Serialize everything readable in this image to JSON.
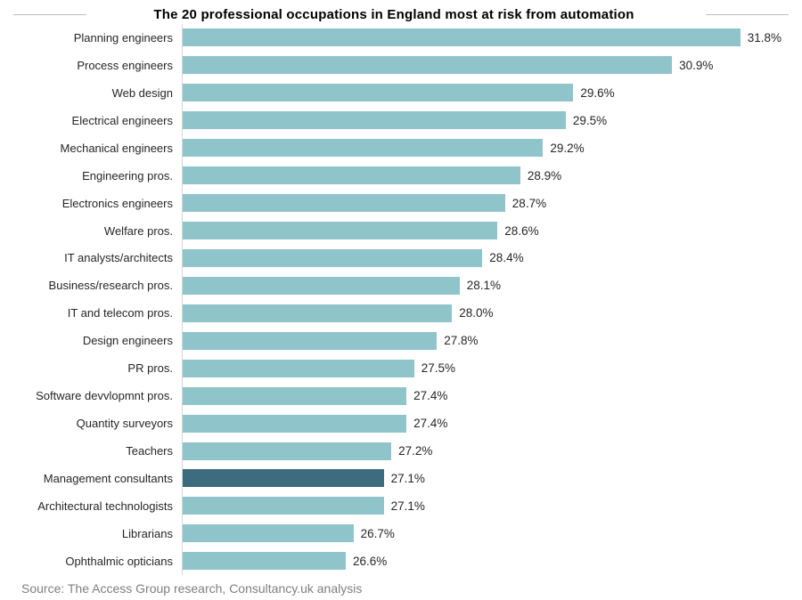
{
  "title": "The 20 professional occupations in England most at risk from automation",
  "source_note": "Source: The Access Group research, Consultancy.uk analysis",
  "chart_data": {
    "type": "bar",
    "orientation": "horizontal",
    "title": "The 20 professional occupations in England most at risk from automation",
    "xlabel": "",
    "ylabel": "",
    "unit": "%",
    "value_label_format": "one_decimal_percent",
    "xlim": [
      24.45,
      31.85
    ],
    "grid": false,
    "legend_position": "none",
    "categories": [
      "Planning engineers",
      "Process engineers",
      "Web design",
      "Electrical engineers",
      "Mechanical engineers",
      "Engineering pros.",
      "Electronics engineers",
      "Welfare pros.",
      "IT analysts/architects",
      "Business/research pros.",
      "IT and telecom pros.",
      "Design engineers",
      "PR pros.",
      "Software devvlopmnt pros.",
      "Quantity surveyors",
      "Teachers",
      "Management consultants",
      "Architectural technologists",
      "Librarians",
      "Ophthalmic opticians"
    ],
    "values": [
      31.8,
      30.9,
      29.6,
      29.5,
      29.2,
      28.9,
      28.7,
      28.6,
      28.4,
      28.1,
      28.0,
      27.8,
      27.5,
      27.4,
      27.4,
      27.2,
      27.1,
      27.1,
      26.7,
      26.6
    ],
    "highlight_index": 16,
    "highlighted_category": "Management consultants",
    "colors": {
      "bar": "#8FC4CB",
      "highlight": "#3D6C7E",
      "axis_line": "#D6D6D6",
      "title_rule": "#BFBFBF",
      "label_text": "#262626",
      "source_text": "#7F7F7F"
    }
  }
}
